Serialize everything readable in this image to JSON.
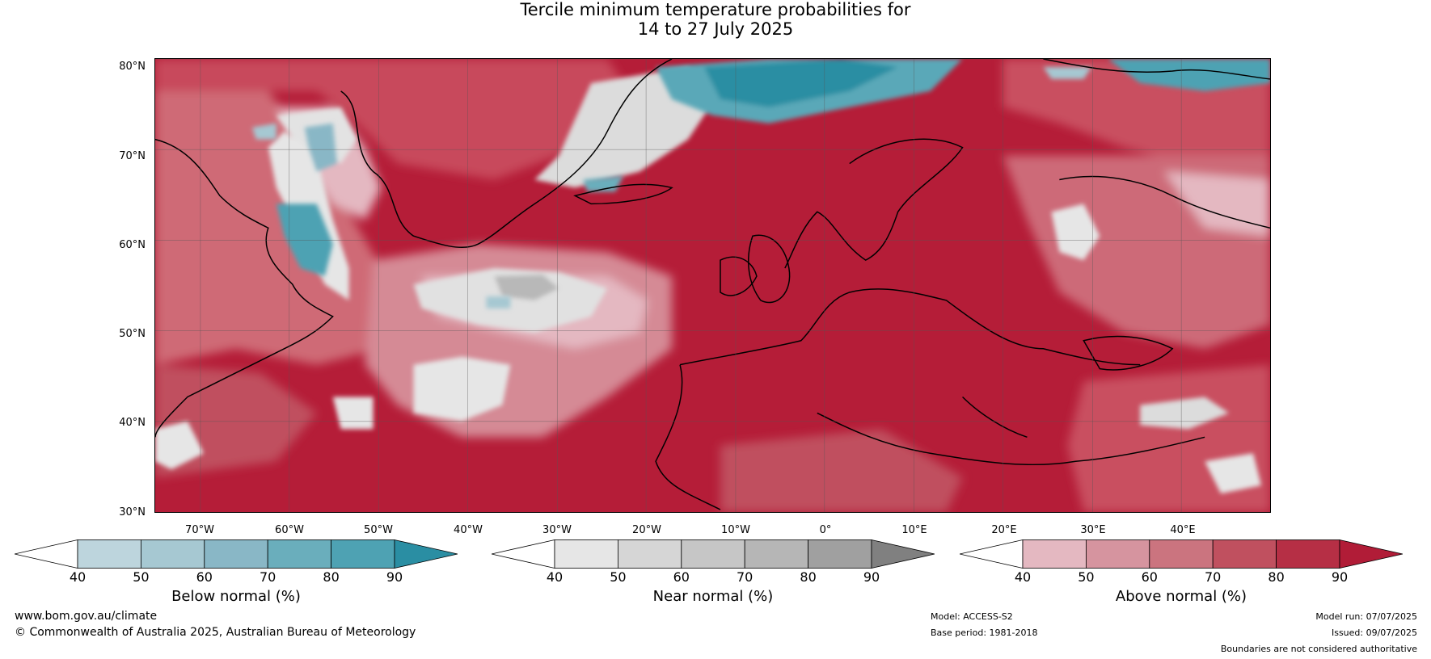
{
  "title": {
    "line1": "Tercile minimum temperature probabilities for",
    "line2": "14 to 27 July 2025"
  },
  "map": {
    "lat_labels": [
      "80°N",
      "70°N",
      "60°N",
      "50°N",
      "40°N",
      "30°N"
    ],
    "lon_labels": [
      "70°W",
      "60°W",
      "50°W",
      "40°W",
      "30°W",
      "20°W",
      "10°W",
      "0°",
      "10°E",
      "20°E",
      "30°E",
      "40°E"
    ]
  },
  "colorbars": [
    {
      "label": "Below normal (%)",
      "ticks": [
        "40",
        "50",
        "60",
        "70",
        "80",
        "90"
      ],
      "colors": [
        "#ffffff",
        "#bdd5dd",
        "#a6c8d2",
        "#89b7c6",
        "#6aaebc",
        "#4ea2b3",
        "#2a8ea3"
      ]
    },
    {
      "label": "Near normal (%)",
      "ticks": [
        "40",
        "50",
        "60",
        "70",
        "80",
        "90"
      ],
      "colors": [
        "#ffffff",
        "#e6e6e6",
        "#d6d6d6",
        "#c6c6c6",
        "#b6b6b6",
        "#a0a0a0",
        "#808080"
      ]
    },
    {
      "label": "Above normal (%)",
      "ticks": [
        "40",
        "50",
        "60",
        "70",
        "80",
        "90"
      ],
      "colors": [
        "#ffffff",
        "#e4b8c1",
        "#d6949f",
        "#cb747f",
        "#c0505f",
        "#b62f45",
        "#b11c37"
      ]
    }
  ],
  "footer": {
    "website": "www.bom.gov.au/climate",
    "copyright": "© Commonwealth of Australia 2025, Australian Bureau of Meteorology",
    "model": "Model: ACCESS-S2",
    "base_period": "Base period: 1981-2018",
    "model_run": "Model run: 07/07/2025",
    "issued": "Issued: 09/07/2025",
    "disclaimer": "Boundaries are not considered authoritative"
  }
}
